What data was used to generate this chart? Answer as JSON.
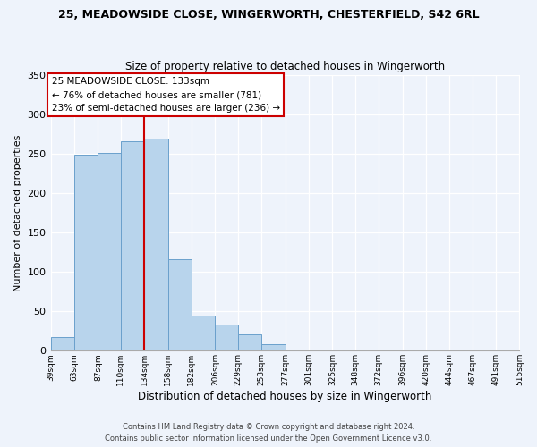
{
  "title": "25, MEADOWSIDE CLOSE, WINGERWORTH, CHESTERFIELD, S42 6RL",
  "subtitle": "Size of property relative to detached houses in Wingerworth",
  "xlabel": "Distribution of detached houses by size in Wingerworth",
  "ylabel": "Number of detached properties",
  "bar_color": "#b8d4ec",
  "bar_edge_color": "#6aa0cc",
  "vline_x": 134,
  "vline_color": "#cc0000",
  "annotation_title": "25 MEADOWSIDE CLOSE: 133sqm",
  "annotation_line1": "← 76% of detached houses are smaller (781)",
  "annotation_line2": "23% of semi-detached houses are larger (236) →",
  "annotation_box_color": "#ffffff",
  "annotation_box_edgecolor": "#cc0000",
  "bins": [
    39,
    63,
    87,
    110,
    134,
    158,
    182,
    206,
    229,
    253,
    277,
    301,
    325,
    348,
    372,
    396,
    420,
    444,
    467,
    491,
    515
  ],
  "counts": [
    17,
    249,
    251,
    266,
    269,
    116,
    45,
    33,
    21,
    8,
    2,
    0,
    2,
    0,
    2,
    0,
    0,
    0,
    0,
    2
  ],
  "ylim": [
    0,
    350
  ],
  "yticks": [
    0,
    50,
    100,
    150,
    200,
    250,
    300,
    350
  ],
  "footer_line1": "Contains HM Land Registry data © Crown copyright and database right 2024.",
  "footer_line2": "Contains public sector information licensed under the Open Government Licence v3.0.",
  "background_color": "#eef3fb"
}
